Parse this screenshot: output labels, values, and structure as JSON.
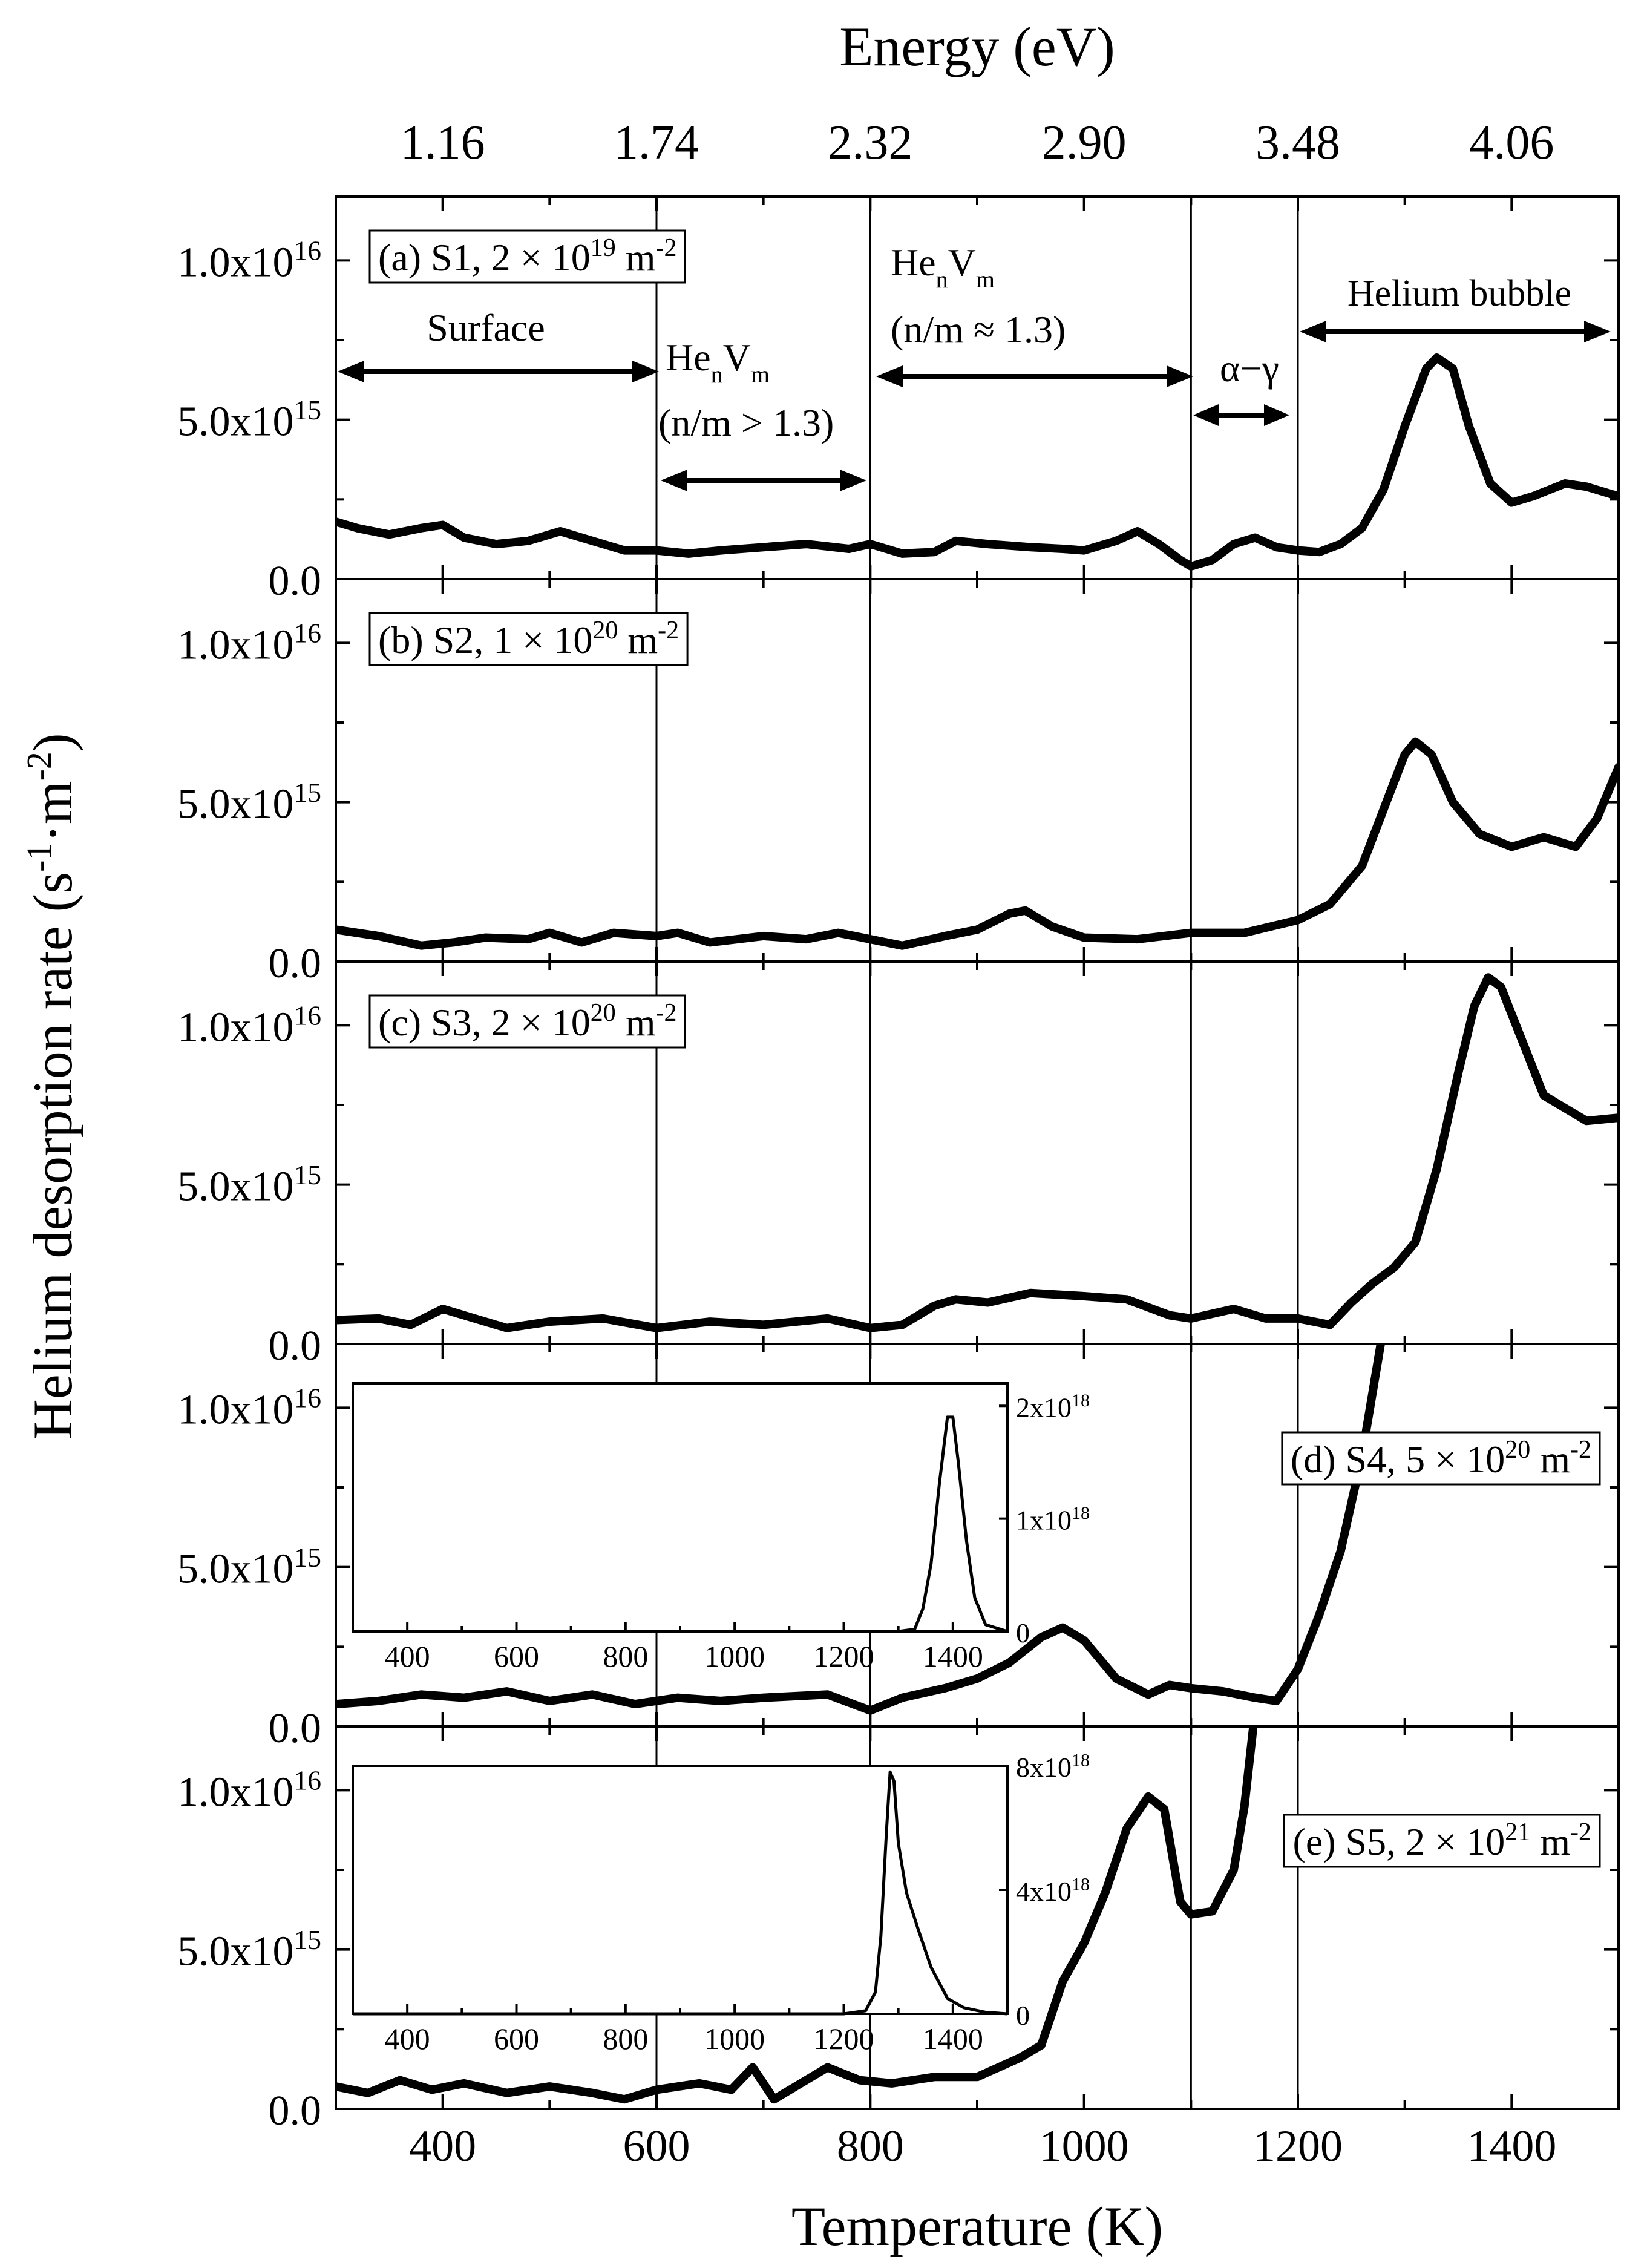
{
  "chart_data": {
    "type": "line",
    "xlabel": "Temperature (K)",
    "ylabel_main": "Helium desorption rate (s",
    "ylabel_sup1": "-1",
    "ylabel_mid": "·m",
    "ylabel_sup2": "-2",
    "ylabel_end": ")",
    "top_axis_label": "Energy (eV)",
    "top_ticks": [
      "1.16",
      "1.74",
      "2.32",
      "2.90",
      "3.48",
      "4.06"
    ],
    "top_tick_temps": [
      400,
      600,
      800,
      1000,
      1200,
      1400
    ],
    "xlim": [
      300,
      1500
    ],
    "x_ticks": [
      "400",
      "600",
      "800",
      "1000",
      "1200",
      "1400"
    ],
    "ylim": [
      0,
      1.2e+16
    ],
    "y_ticks": [
      {
        "mant": "0.0",
        "exp": ""
      },
      {
        "mant": "5.0x10",
        "exp": "15"
      },
      {
        "mant": "1.0x10",
        "exp": "16"
      }
    ],
    "vlines": [
      600,
      800,
      1100,
      1200
    ],
    "annotations": {
      "surface": "Surface",
      "he": "He",
      "n": "n",
      "v": "V",
      "m": "m",
      "ratio_gt": "(n/m > 1.3)",
      "ratio_eq": "(n/m ≈ 1.3)",
      "alpha_gamma": "α−γ",
      "helium_bubble": "Helium bubble"
    },
    "panels": [
      {
        "label_pre": "(a) S1, 2 × 10",
        "label_exp": "19",
        "label_post": " m",
        "label_exp2": "-2",
        "points": [
          [
            300,
            1800000000000000.0
          ],
          [
            320,
            1600000000000000.0
          ],
          [
            350,
            1400000000000000.0
          ],
          [
            380,
            1600000000000000.0
          ],
          [
            400,
            1700000000000000.0
          ],
          [
            420,
            1300000000000000.0
          ],
          [
            450,
            1100000000000000.0
          ],
          [
            480,
            1200000000000000.0
          ],
          [
            510,
            1500000000000000.0
          ],
          [
            540,
            1200000000000000.0
          ],
          [
            570,
            900000000000000.0
          ],
          [
            600,
            900000000000000.0
          ],
          [
            630,
            800000000000000.0
          ],
          [
            660,
            900000000000000.0
          ],
          [
            700,
            1000000000000000.0
          ],
          [
            740,
            1100000000000000.0
          ],
          [
            780,
            950000000000000.0
          ],
          [
            800,
            1100000000000000.0
          ],
          [
            830,
            800000000000000.0
          ],
          [
            860,
            850000000000000.0
          ],
          [
            880,
            1200000000000000.0
          ],
          [
            910,
            1100000000000000.0
          ],
          [
            950,
            1000000000000000.0
          ],
          [
            980,
            950000000000000.0
          ],
          [
            1000,
            900000000000000.0
          ],
          [
            1030,
            1200000000000000.0
          ],
          [
            1050,
            1500000000000000.0
          ],
          [
            1070,
            1100000000000000.0
          ],
          [
            1090,
            600000000000000.0
          ],
          [
            1100,
            400000000000000.0
          ],
          [
            1120,
            600000000000000.0
          ],
          [
            1140,
            1100000000000000.0
          ],
          [
            1160,
            1300000000000000.0
          ],
          [
            1180,
            1000000000000000.0
          ],
          [
            1200,
            900000000000000.0
          ],
          [
            1220,
            850000000000000.0
          ],
          [
            1240,
            1100000000000000.0
          ],
          [
            1260,
            1600000000000000.0
          ],
          [
            1280,
            2800000000000000.0
          ],
          [
            1300,
            4800000000000000.0
          ],
          [
            1320,
            6600000000000000.0
          ],
          [
            1330,
            6950000000000000.0
          ],
          [
            1345,
            6600000000000000.0
          ],
          [
            1360,
            4800000000000000.0
          ],
          [
            1380,
            3000000000000000.0
          ],
          [
            1400,
            2400000000000000.0
          ],
          [
            1420,
            2600000000000000.0
          ],
          [
            1450,
            3000000000000000.0
          ],
          [
            1470,
            2900000000000000.0
          ],
          [
            1500,
            2600000000000000.0
          ]
        ]
      },
      {
        "label_pre": "(b) S2, 1 × 10",
        "label_exp": "20",
        "label_post": " m",
        "label_exp2": "-2",
        "points": [
          [
            300,
            1000000000000000.0
          ],
          [
            340,
            800000000000000.0
          ],
          [
            380,
            500000000000000.0
          ],
          [
            410,
            600000000000000.0
          ],
          [
            440,
            750000000000000.0
          ],
          [
            480,
            700000000000000.0
          ],
          [
            500,
            900000000000000.0
          ],
          [
            530,
            600000000000000.0
          ],
          [
            560,
            900000000000000.0
          ],
          [
            600,
            800000000000000.0
          ],
          [
            620,
            900000000000000.0
          ],
          [
            650,
            600000000000000.0
          ],
          [
            700,
            800000000000000.0
          ],
          [
            740,
            700000000000000.0
          ],
          [
            770,
            900000000000000.0
          ],
          [
            800,
            700000000000000.0
          ],
          [
            830,
            500000000000000.0
          ],
          [
            870,
            800000000000000.0
          ],
          [
            900,
            1000000000000000.0
          ],
          [
            930,
            1500000000000000.0
          ],
          [
            945,
            1600000000000000.0
          ],
          [
            970,
            1100000000000000.0
          ],
          [
            1000,
            750000000000000.0
          ],
          [
            1050,
            700000000000000.0
          ],
          [
            1100,
            900000000000000.0
          ],
          [
            1150,
            900000000000000.0
          ],
          [
            1200,
            1300000000000000.0
          ],
          [
            1230,
            1800000000000000.0
          ],
          [
            1260,
            3000000000000000.0
          ],
          [
            1285,
            5200000000000000.0
          ],
          [
            1300,
            6500000000000000.0
          ],
          [
            1310,
            6900000000000000.0
          ],
          [
            1325,
            6500000000000000.0
          ],
          [
            1345,
            5000000000000000.0
          ],
          [
            1370,
            4000000000000000.0
          ],
          [
            1400,
            3600000000000000.0
          ],
          [
            1430,
            3900000000000000.0
          ],
          [
            1460,
            3600000000000000.0
          ],
          [
            1480,
            4500000000000000.0
          ],
          [
            1500,
            6100000000000000.0
          ]
        ]
      },
      {
        "label_pre": "(c) S3, 2 × 10",
        "label_exp": "20",
        "label_post": " m",
        "label_exp2": "-2",
        "points": [
          [
            300,
            750000000000000.0
          ],
          [
            340,
            800000000000000.0
          ],
          [
            370,
            600000000000000.0
          ],
          [
            400,
            1100000000000000.0
          ],
          [
            430,
            800000000000000.0
          ],
          [
            460,
            500000000000000.0
          ],
          [
            500,
            700000000000000.0
          ],
          [
            550,
            800000000000000.0
          ],
          [
            600,
            500000000000000.0
          ],
          [
            650,
            700000000000000.0
          ],
          [
            700,
            600000000000000.0
          ],
          [
            760,
            800000000000000.0
          ],
          [
            800,
            500000000000000.0
          ],
          [
            830,
            600000000000000.0
          ],
          [
            860,
            1200000000000000.0
          ],
          [
            880,
            1400000000000000.0
          ],
          [
            910,
            1300000000000000.0
          ],
          [
            950,
            1600000000000000.0
          ],
          [
            1000,
            1500000000000000.0
          ],
          [
            1040,
            1400000000000000.0
          ],
          [
            1080,
            900000000000000.0
          ],
          [
            1100,
            800000000000000.0
          ],
          [
            1140,
            1100000000000000.0
          ],
          [
            1170,
            800000000000000.0
          ],
          [
            1200,
            800000000000000.0
          ],
          [
            1230,
            600000000000000.0
          ],
          [
            1250,
            1300000000000000.0
          ],
          [
            1270,
            1900000000000000.0
          ],
          [
            1290,
            2400000000000000.0
          ],
          [
            1310,
            3200000000000000.0
          ],
          [
            1330,
            5500000000000000.0
          ],
          [
            1350,
            8500000000000000.0
          ],
          [
            1365,
            1.06e+16
          ],
          [
            1378,
            1.15e+16
          ],
          [
            1390,
            1.12e+16
          ],
          [
            1410,
            9500000000000000.0
          ],
          [
            1430,
            7800000000000000.0
          ],
          [
            1450,
            7400000000000000.0
          ],
          [
            1470,
            7000000000000000.0
          ],
          [
            1500,
            7100000000000000.0
          ]
        ]
      },
      {
        "label_pre": "(d) S4, 5 × 10",
        "label_exp": "20",
        "label_post": " m",
        "label_exp2": "-2",
        "points": [
          [
            300,
            700000000000000.0
          ],
          [
            340,
            800000000000000.0
          ],
          [
            380,
            1000000000000000.0
          ],
          [
            420,
            900000000000000.0
          ],
          [
            460,
            1100000000000000.0
          ],
          [
            500,
            800000000000000.0
          ],
          [
            540,
            1000000000000000.0
          ],
          [
            580,
            700000000000000.0
          ],
          [
            620,
            900000000000000.0
          ],
          [
            660,
            800000000000000.0
          ],
          [
            700,
            900000000000000.0
          ],
          [
            760,
            1000000000000000.0
          ],
          [
            800,
            500000000000000.0
          ],
          [
            830,
            900000000000000.0
          ],
          [
            870,
            1200000000000000.0
          ],
          [
            900,
            1500000000000000.0
          ],
          [
            930,
            2000000000000000.0
          ],
          [
            960,
            2800000000000000.0
          ],
          [
            980,
            3100000000000000.0
          ],
          [
            1000,
            2700000000000000.0
          ],
          [
            1030,
            1500000000000000.0
          ],
          [
            1060,
            1000000000000000.0
          ],
          [
            1080,
            1300000000000000.0
          ],
          [
            1100,
            1200000000000000.0
          ],
          [
            1130,
            1100000000000000.0
          ],
          [
            1160,
            900000000000000.0
          ],
          [
            1180,
            800000000000000.0
          ],
          [
            1200,
            1800000000000000.0
          ],
          [
            1220,
            3500000000000000.0
          ],
          [
            1240,
            5500000000000000.0
          ],
          [
            1260,
            8500000000000000.0
          ],
          [
            1280,
            1.25e+16
          ]
        ]
      },
      {
        "label_pre": "(e) S5, 2 × 10",
        "label_exp": "21",
        "label_post": " m",
        "label_exp2": "-2",
        "points": [
          [
            300,
            700000000000000.0
          ],
          [
            330,
            500000000000000.0
          ],
          [
            360,
            900000000000000.0
          ],
          [
            390,
            600000000000000.0
          ],
          [
            420,
            800000000000000.0
          ],
          [
            460,
            500000000000000.0
          ],
          [
            500,
            700000000000000.0
          ],
          [
            540,
            500000000000000.0
          ],
          [
            570,
            300000000000000.0
          ],
          [
            600,
            600000000000000.0
          ],
          [
            640,
            800000000000000.0
          ],
          [
            670,
            600000000000000.0
          ],
          [
            690,
            1300000000000000.0
          ],
          [
            710,
            300000000000000.0
          ],
          [
            730,
            700000000000000.0
          ],
          [
            760,
            1300000000000000.0
          ],
          [
            790,
            900000000000000.0
          ],
          [
            820,
            800000000000000.0
          ],
          [
            860,
            1000000000000000.0
          ],
          [
            900,
            1000000000000000.0
          ],
          [
            940,
            1600000000000000.0
          ],
          [
            960,
            2000000000000000.0
          ],
          [
            980,
            4000000000000000.0
          ],
          [
            1000,
            5200000000000000.0
          ],
          [
            1020,
            6800000000000000.0
          ],
          [
            1040,
            8800000000000000.0
          ],
          [
            1060,
            9800000000000000.0
          ],
          [
            1075,
            9400000000000000.0
          ],
          [
            1090,
            6500000000000000.0
          ],
          [
            1100,
            6100000000000000.0
          ],
          [
            1120,
            6200000000000000.0
          ],
          [
            1140,
            7500000000000000.0
          ],
          [
            1150,
            9500000000000000.0
          ],
          [
            1160,
            1.25e+16
          ]
        ]
      }
    ],
    "insets": [
      {
        "panel": 3,
        "xlim": [
          300,
          1500
        ],
        "x_ticks": [
          "400",
          "600",
          "800",
          "1000",
          "1200",
          "1400"
        ],
        "y_ticks": [
          {
            "mant": "0",
            "exp": ""
          },
          {
            "mant": "1x10",
            "exp": "18"
          },
          {
            "mant": "2x10",
            "exp": "18"
          }
        ],
        "ylim": [
          0,
          2.2e+18
        ],
        "points": [
          [
            300,
            0
          ],
          [
            1300,
            0
          ],
          [
            1330,
            2e+16
          ],
          [
            1345,
            2e+17
          ],
          [
            1360,
            6e+17
          ],
          [
            1375,
            1.3e+18
          ],
          [
            1390,
            1.9e+18
          ],
          [
            1400,
            1.9e+18
          ],
          [
            1410,
            1.5e+18
          ],
          [
            1425,
            8e+17
          ],
          [
            1440,
            3e+17
          ],
          [
            1460,
            6e+16
          ],
          [
            1500,
            0
          ]
        ]
      },
      {
        "panel": 4,
        "xlim": [
          300,
          1500
        ],
        "x_ticks": [
          "400",
          "600",
          "800",
          "1000",
          "1200",
          "1400"
        ],
        "y_ticks": [
          {
            "mant": "0",
            "exp": ""
          },
          {
            "mant": "4x10",
            "exp": "18"
          },
          {
            "mant": "8x10",
            "exp": "18"
          }
        ],
        "ylim": [
          0,
          8e+18
        ],
        "points": [
          [
            300,
            0
          ],
          [
            1200,
            0
          ],
          [
            1240,
            1e+17
          ],
          [
            1258,
            7e+17
          ],
          [
            1268,
            2.5e+18
          ],
          [
            1278,
            5.8e+18
          ],
          [
            1285,
            7.8e+18
          ],
          [
            1292,
            7.5e+18
          ],
          [
            1300,
            5.5e+18
          ],
          [
            1315,
            3.9e+18
          ],
          [
            1335,
            2.8e+18
          ],
          [
            1360,
            1.5e+18
          ],
          [
            1390,
            5e+17
          ],
          [
            1420,
            2e+17
          ],
          [
            1460,
            5e+16
          ],
          [
            1500,
            0
          ]
        ]
      }
    ]
  }
}
